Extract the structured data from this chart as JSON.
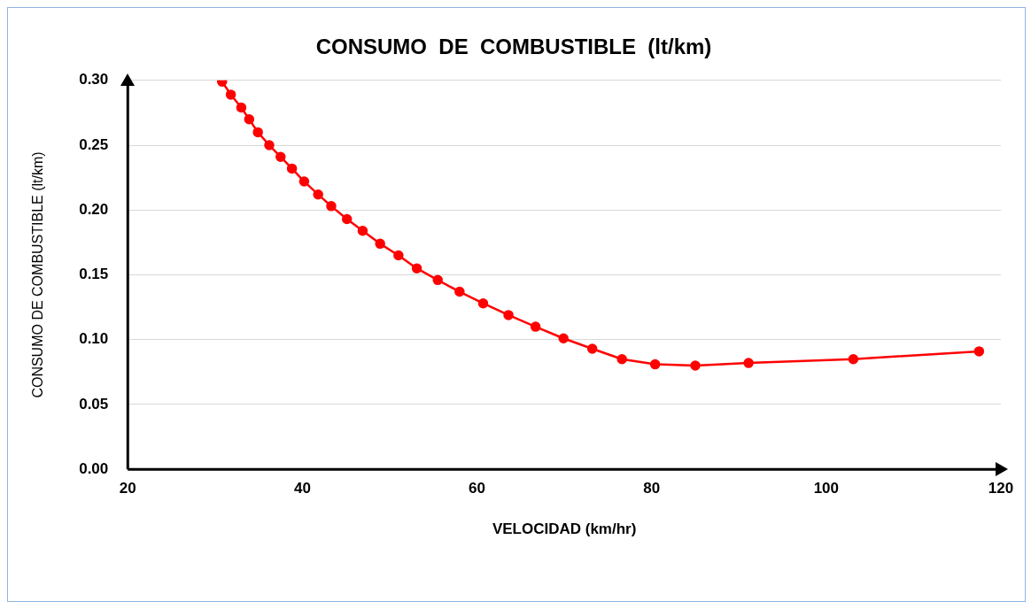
{
  "chart_data": {
    "type": "line",
    "title": "CONSUMO  DE  COMBUSTIBLE  (lt/km)",
    "xlabel": "VELOCIDAD (km/hr)",
    "ylabel": "CONSUMO DE COMBUSTIBLE (lt/km)",
    "xlim": [
      20,
      120
    ],
    "xticks": [
      20,
      40,
      60,
      80,
      100,
      120
    ],
    "ylim": [
      0,
      0.3
    ],
    "yticks": [
      {
        "value": 0,
        "label": "0.00"
      },
      {
        "value": 0.05,
        "label": "0.05"
      },
      {
        "value": 0.1,
        "label": "0.10"
      },
      {
        "value": 0.15,
        "label": "0.15"
      },
      {
        "value": 0.2,
        "label": "0.20"
      },
      {
        "value": 0.25,
        "label": "0.25"
      },
      {
        "value": 0.3,
        "label": "0.30"
      }
    ],
    "grid": "y",
    "legend": false,
    "marker": "circle",
    "line_style": "solid",
    "series": [
      {
        "color": "#ff0000",
        "x": [
          30.8,
          31.8,
          33.0,
          33.9,
          34.9,
          36.2,
          37.5,
          38.8,
          40.2,
          41.8,
          43.3,
          45.1,
          46.9,
          48.9,
          51.0,
          53.1,
          55.5,
          58.0,
          60.7,
          63.6,
          66.7,
          69.9,
          73.2,
          76.6,
          80.4,
          85.0,
          91.1,
          103.1,
          117.5
        ],
        "values": [
          0.299,
          0.289,
          0.279,
          0.27,
          0.26,
          0.25,
          0.241,
          0.232,
          0.222,
          0.212,
          0.203,
          0.193,
          0.184,
          0.174,
          0.165,
          0.155,
          0.146,
          0.137,
          0.128,
          0.119,
          0.11,
          0.101,
          0.093,
          0.085,
          0.081,
          0.08,
          0.082,
          0.085,
          0.091
        ]
      }
    ]
  }
}
